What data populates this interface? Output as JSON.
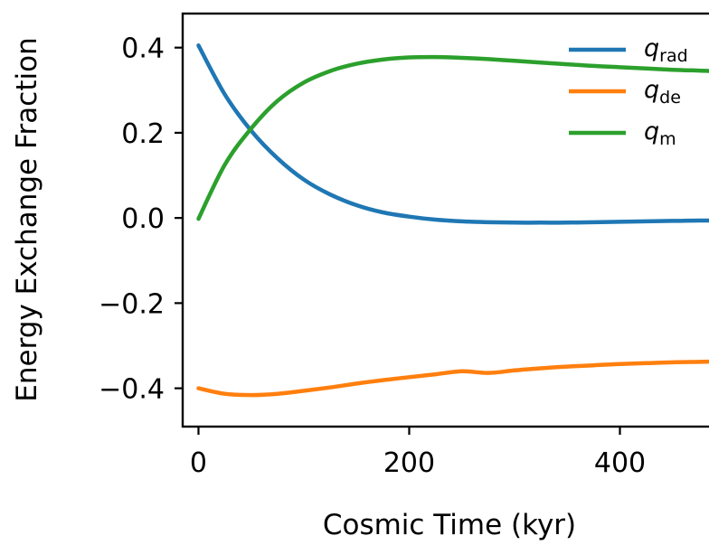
{
  "chart_data": {
    "type": "line",
    "title": "",
    "xlabel": "Cosmic Time (kyr)",
    "ylabel": "Energy Exchange Fraction",
    "xlim": [
      -15,
      500
    ],
    "ylim": [
      -0.49,
      0.48
    ],
    "x_ticks": [
      0,
      200,
      400
    ],
    "x_tick_labels": [
      "0",
      "200",
      "400"
    ],
    "y_ticks": [
      -0.4,
      -0.2,
      0.0,
      0.2,
      0.4
    ],
    "y_tick_labels": [
      "−0.4",
      "−0.2",
      "0.0",
      "0.2",
      "0.4"
    ],
    "grid": false,
    "legend": "top-right",
    "x": [
      0,
      25,
      50,
      75,
      100,
      125,
      150,
      175,
      200,
      225,
      250,
      275,
      300,
      325,
      350,
      375,
      400,
      425,
      450,
      475,
      490
    ],
    "series": [
      {
        "label_main": "q",
        "label_sub": "rad",
        "color": "#1f77b4",
        "values": [
          0.405,
          0.29,
          0.205,
          0.14,
          0.09,
          0.055,
          0.03,
          0.013,
          0.003,
          -0.004,
          -0.008,
          -0.01,
          -0.011,
          -0.011,
          -0.011,
          -0.01,
          -0.009,
          -0.008,
          -0.007,
          -0.006,
          -0.006
        ]
      },
      {
        "label_main": "q",
        "label_sub": "de",
        "color": "#ff7f0e",
        "values": [
          -0.4,
          -0.413,
          -0.416,
          -0.413,
          -0.406,
          -0.398,
          -0.389,
          -0.381,
          -0.374,
          -0.367,
          -0.36,
          -0.364,
          -0.358,
          -0.353,
          -0.349,
          -0.346,
          -0.343,
          -0.341,
          -0.339,
          -0.338,
          -0.337
        ]
      },
      {
        "label_main": "q",
        "label_sub": "m",
        "color": "#2ca02c",
        "values": [
          -0.002,
          0.125,
          0.21,
          0.275,
          0.318,
          0.345,
          0.362,
          0.372,
          0.377,
          0.378,
          0.376,
          0.373,
          0.369,
          0.365,
          0.361,
          0.357,
          0.354,
          0.351,
          0.348,
          0.346,
          0.345
        ]
      }
    ]
  }
}
